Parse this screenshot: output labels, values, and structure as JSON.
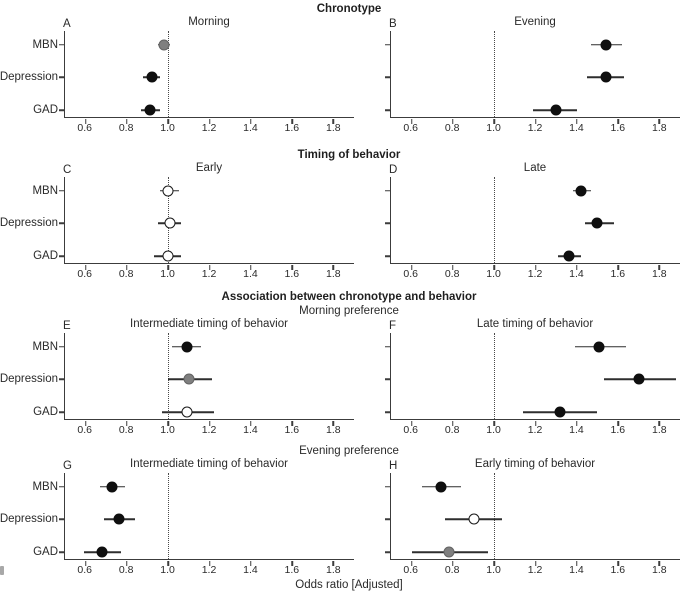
{
  "chart_data": {
    "type": "forest",
    "xlabel": "Odds ratio [Adjusted]",
    "outcomes": [
      "MBN",
      "Depression",
      "GAD"
    ],
    "x_ticks": [
      "0.6",
      "0.8",
      "1.0",
      "1.2",
      "1.4",
      "1.6",
      "1.8"
    ],
    "x_tick_values": [
      0.6,
      0.8,
      1.0,
      1.2,
      1.4,
      1.6,
      1.8
    ],
    "x_range": [
      0.5,
      1.9
    ],
    "reference_line": 1.0,
    "legend_note": "fill encodes point style seen in pixels: black, gray, or open (white)",
    "colors": {
      "black": "#0f0f0f",
      "gray": "#7f7f7f",
      "open": "#ffffff",
      "axis": "#3c3c3c"
    },
    "sections": [
      {
        "heading": "Chronotype",
        "subheading": "",
        "panels": [
          {
            "letter": "A",
            "title": "Morning",
            "points": [
              {
                "outcome": "MBN",
                "or": 0.98,
                "ci_low": 0.95,
                "ci_high": 1.01,
                "fill": "gray"
              },
              {
                "outcome": "Depression",
                "or": 0.92,
                "ci_low": 0.88,
                "ci_high": 0.96,
                "fill": "black"
              },
              {
                "outcome": "GAD",
                "or": 0.91,
                "ci_low": 0.87,
                "ci_high": 0.96,
                "fill": "black"
              }
            ]
          },
          {
            "letter": "B",
            "title": "Evening",
            "points": [
              {
                "outcome": "MBN",
                "or": 1.54,
                "ci_low": 1.47,
                "ci_high": 1.62,
                "fill": "black"
              },
              {
                "outcome": "Depression",
                "or": 1.54,
                "ci_low": 1.45,
                "ci_high": 1.63,
                "fill": "black"
              },
              {
                "outcome": "GAD",
                "or": 1.3,
                "ci_low": 1.19,
                "ci_high": 1.4,
                "fill": "black"
              }
            ]
          }
        ]
      },
      {
        "heading": "Timing of behavior",
        "subheading": "",
        "panels": [
          {
            "letter": "C",
            "title": "Early",
            "points": [
              {
                "outcome": "MBN",
                "or": 1.0,
                "ci_low": 0.96,
                "ci_high": 1.05,
                "fill": "open"
              },
              {
                "outcome": "Depression",
                "or": 1.01,
                "ci_low": 0.95,
                "ci_high": 1.06,
                "fill": "open"
              },
              {
                "outcome": "GAD",
                "or": 1.0,
                "ci_low": 0.93,
                "ci_high": 1.06,
                "fill": "open"
              }
            ]
          },
          {
            "letter": "D",
            "title": "Late",
            "points": [
              {
                "outcome": "MBN",
                "or": 1.42,
                "ci_low": 1.38,
                "ci_high": 1.47,
                "fill": "black"
              },
              {
                "outcome": "Depression",
                "or": 1.5,
                "ci_low": 1.44,
                "ci_high": 1.58,
                "fill": "black"
              },
              {
                "outcome": "GAD",
                "or": 1.36,
                "ci_low": 1.31,
                "ci_high": 1.42,
                "fill": "black"
              }
            ]
          }
        ]
      },
      {
        "heading": "Association between chronotype and behavior",
        "subheading": "Morning preference",
        "panels": [
          {
            "letter": "E",
            "title": "Intermediate timing of behavior",
            "points": [
              {
                "outcome": "MBN",
                "or": 1.09,
                "ci_low": 1.02,
                "ci_high": 1.16,
                "fill": "black"
              },
              {
                "outcome": "Depression",
                "or": 1.1,
                "ci_low": 1.0,
                "ci_high": 1.21,
                "fill": "gray"
              },
              {
                "outcome": "GAD",
                "or": 1.09,
                "ci_low": 0.97,
                "ci_high": 1.22,
                "fill": "open"
              }
            ]
          },
          {
            "letter": "F",
            "title": "Late timing of behavior",
            "points": [
              {
                "outcome": "MBN",
                "or": 1.51,
                "ci_low": 1.39,
                "ci_high": 1.64,
                "fill": "black"
              },
              {
                "outcome": "Depression",
                "or": 1.7,
                "ci_low": 1.53,
                "ci_high": 1.88,
                "fill": "black"
              },
              {
                "outcome": "GAD",
                "or": 1.32,
                "ci_low": 1.14,
                "ci_high": 1.5,
                "fill": "black"
              }
            ]
          }
        ]
      },
      {
        "heading": "",
        "subheading": "Evening preference",
        "panels": [
          {
            "letter": "G",
            "title": "Intermediate timing of behavior",
            "points": [
              {
                "outcome": "MBN",
                "or": 0.73,
                "ci_low": 0.67,
                "ci_high": 0.79,
                "fill": "black"
              },
              {
                "outcome": "Depression",
                "or": 0.76,
                "ci_low": 0.69,
                "ci_high": 0.84,
                "fill": "black"
              },
              {
                "outcome": "GAD",
                "or": 0.68,
                "ci_low": 0.59,
                "ci_high": 0.77,
                "fill": "black"
              }
            ]
          },
          {
            "letter": "H",
            "title": "Early timing of behavior",
            "points": [
              {
                "outcome": "MBN",
                "or": 0.74,
                "ci_low": 0.65,
                "ci_high": 0.84,
                "fill": "black"
              },
              {
                "outcome": "Depression",
                "or": 0.9,
                "ci_low": 0.76,
                "ci_high": 1.04,
                "fill": "open"
              },
              {
                "outcome": "GAD",
                "or": 0.78,
                "ci_low": 0.6,
                "ci_high": 0.97,
                "fill": "gray"
              }
            ]
          }
        ]
      }
    ]
  }
}
